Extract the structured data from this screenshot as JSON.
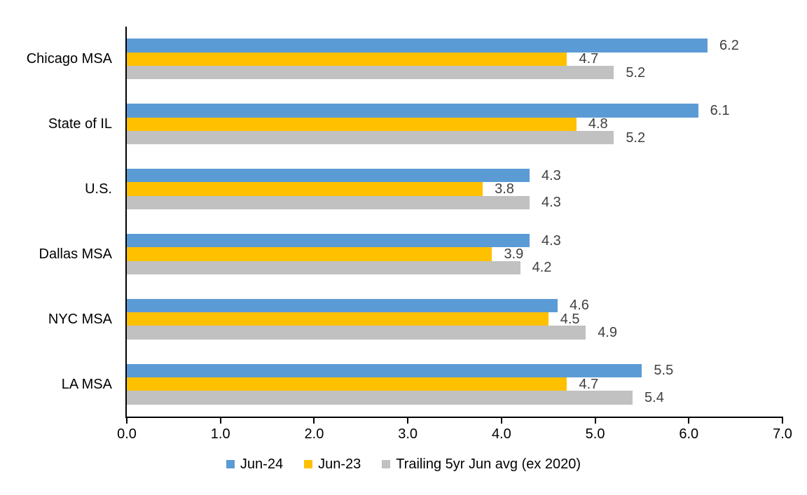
{
  "chart_data": {
    "type": "bar",
    "orientation": "horizontal",
    "title": "",
    "xlabel": "",
    "ylabel": "",
    "categories": [
      "Chicago MSA",
      "State of IL",
      "U.S.",
      "Dallas MSA",
      "NYC MSA",
      "LA MSA"
    ],
    "series": [
      {
        "name": "Jun-24",
        "color": "#5B9BD5",
        "values": [
          6.2,
          6.1,
          4.3,
          4.3,
          4.6,
          5.5
        ]
      },
      {
        "name": "Jun-23",
        "color": "#FFC000",
        "values": [
          4.7,
          4.8,
          3.8,
          3.9,
          4.5,
          4.7
        ]
      },
      {
        "name": "Trailing 5yr Jun avg (ex 2020)",
        "color": "#C1C1C1",
        "values": [
          5.2,
          5.2,
          4.3,
          4.2,
          4.9,
          5.4
        ]
      }
    ],
    "xlim": [
      0,
      7
    ],
    "xticks": [
      "0.0",
      "1.0",
      "2.0",
      "3.0",
      "4.0",
      "5.0",
      "6.0",
      "7.0"
    ],
    "grid": false,
    "legend_position": "bottom",
    "data_labels": true,
    "data_label_color": "#404040",
    "axis_color": "#000000",
    "text_color": "#000000",
    "background_color": "#ffffff"
  }
}
